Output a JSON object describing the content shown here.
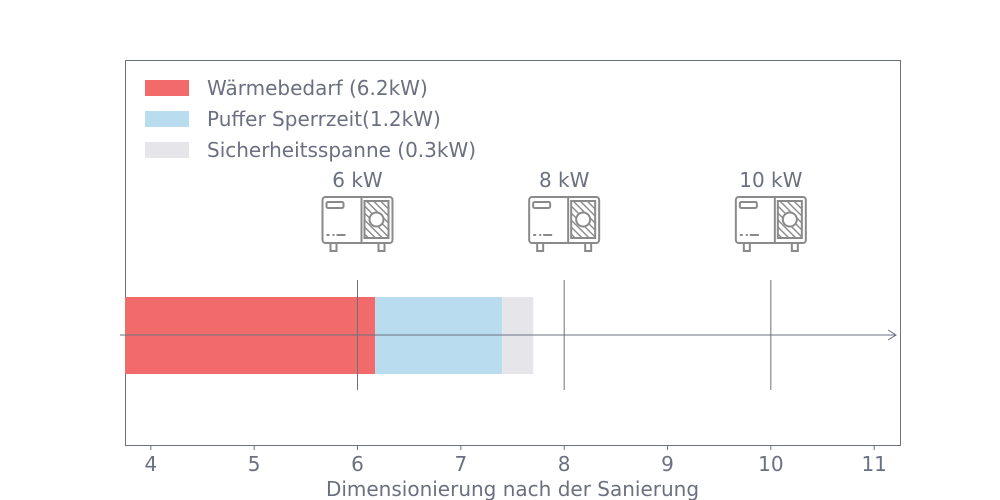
{
  "chart_data": {
    "type": "bar",
    "orientation": "horizontal-stacked",
    "xlabel": "Dimensionierung nach der Sanierung",
    "xlim": [
      3.75,
      11.25
    ],
    "xticks": [
      4,
      5,
      6,
      7,
      8,
      9,
      10,
      11
    ],
    "x_tick_labels": [
      "4",
      "5",
      "6",
      "7",
      "8",
      "9",
      "10",
      "11"
    ],
    "segments": [
      {
        "name": "Wärmebedarf (6.2kW)",
        "start": 3.75,
        "end": 6.17,
        "color": "#f26b6b"
      },
      {
        "name": "Puffer Sperrzeit(1.2kW)",
        "start": 6.17,
        "end": 7.4,
        "color": "#badcef"
      },
      {
        "name": "Sicherheitsspanne (0.3kW)",
        "start": 7.4,
        "end": 7.7,
        "color": "#e5e5ea"
      }
    ],
    "heat_pumps": [
      {
        "x": 6,
        "label": "6 kW",
        "icon": "heat-pump-icon"
      },
      {
        "x": 8,
        "label": "8 kW",
        "icon": "heat-pump-icon"
      },
      {
        "x": 10,
        "label": "10 kW",
        "icon": "heat-pump-icon"
      }
    ],
    "legend_position": "top-left",
    "grid": false,
    "colors": {
      "axis": "#6b7080",
      "text": "#6b7080",
      "icon": "#8a8a8a"
    }
  }
}
